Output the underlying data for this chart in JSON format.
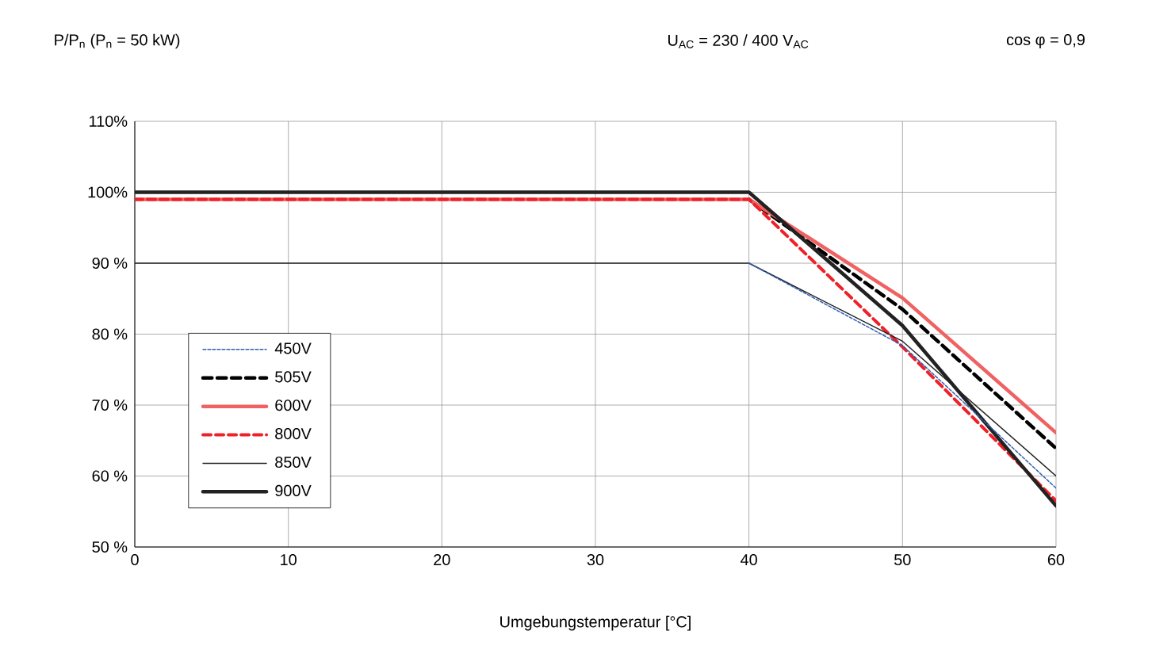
{
  "chart_data": {
    "type": "line",
    "ylabel": "P/P$_{n}$ (P$_{n}$ = 50 kW)",
    "xlabel": "Umgebungstemperatur [°C]",
    "annotations": [
      "U$_{AC}$ = 230 / 400 V$_{AC}$",
      "cos φ = 0,9"
    ],
    "x": [
      0,
      40,
      50,
      60
    ],
    "series": [
      {
        "name": "450V",
        "color": "#2f5fb3",
        "line_style": "dashed",
        "values": [
          null,
          90,
          78.4,
          58.3
        ]
      },
      {
        "name": "505V",
        "color": "#000000",
        "line_style": "dashed",
        "values": [
          null,
          99,
          83.5,
          63.9
        ]
      },
      {
        "name": "600V",
        "color": "#f06262",
        "line_style": "solid",
        "values": [
          99,
          99,
          85.1,
          66.1
        ]
      },
      {
        "name": "800V",
        "color": "#ee2028",
        "line_style": "dashed",
        "values": [
          99,
          99,
          78.2,
          56.5
        ]
      },
      {
        "name": "850V",
        "color": "#222222",
        "line_style": "solid",
        "values": [
          90,
          90,
          79,
          60
        ]
      },
      {
        "name": "900V",
        "color": "#222222",
        "line_style": "solid",
        "values": [
          100,
          100,
          81.2,
          55.8
        ]
      }
    ],
    "xlim": [
      0,
      60
    ],
    "xticks": [
      0,
      10,
      20,
      30,
      40,
      50,
      60
    ],
    "ylim": [
      50,
      110
    ],
    "yticks": [
      {
        "value": 50,
        "label": "50 %"
      },
      {
        "value": 60,
        "label": "60 %"
      },
      {
        "value": 70,
        "label": "70 %"
      },
      {
        "value": 80,
        "label": "80 %"
      },
      {
        "value": 90,
        "label": "90 %"
      },
      {
        "value": 100,
        "label": "100%"
      },
      {
        "value": 110,
        "label": "110%"
      }
    ],
    "grid": true,
    "legend": "left",
    "marker": "none"
  }
}
